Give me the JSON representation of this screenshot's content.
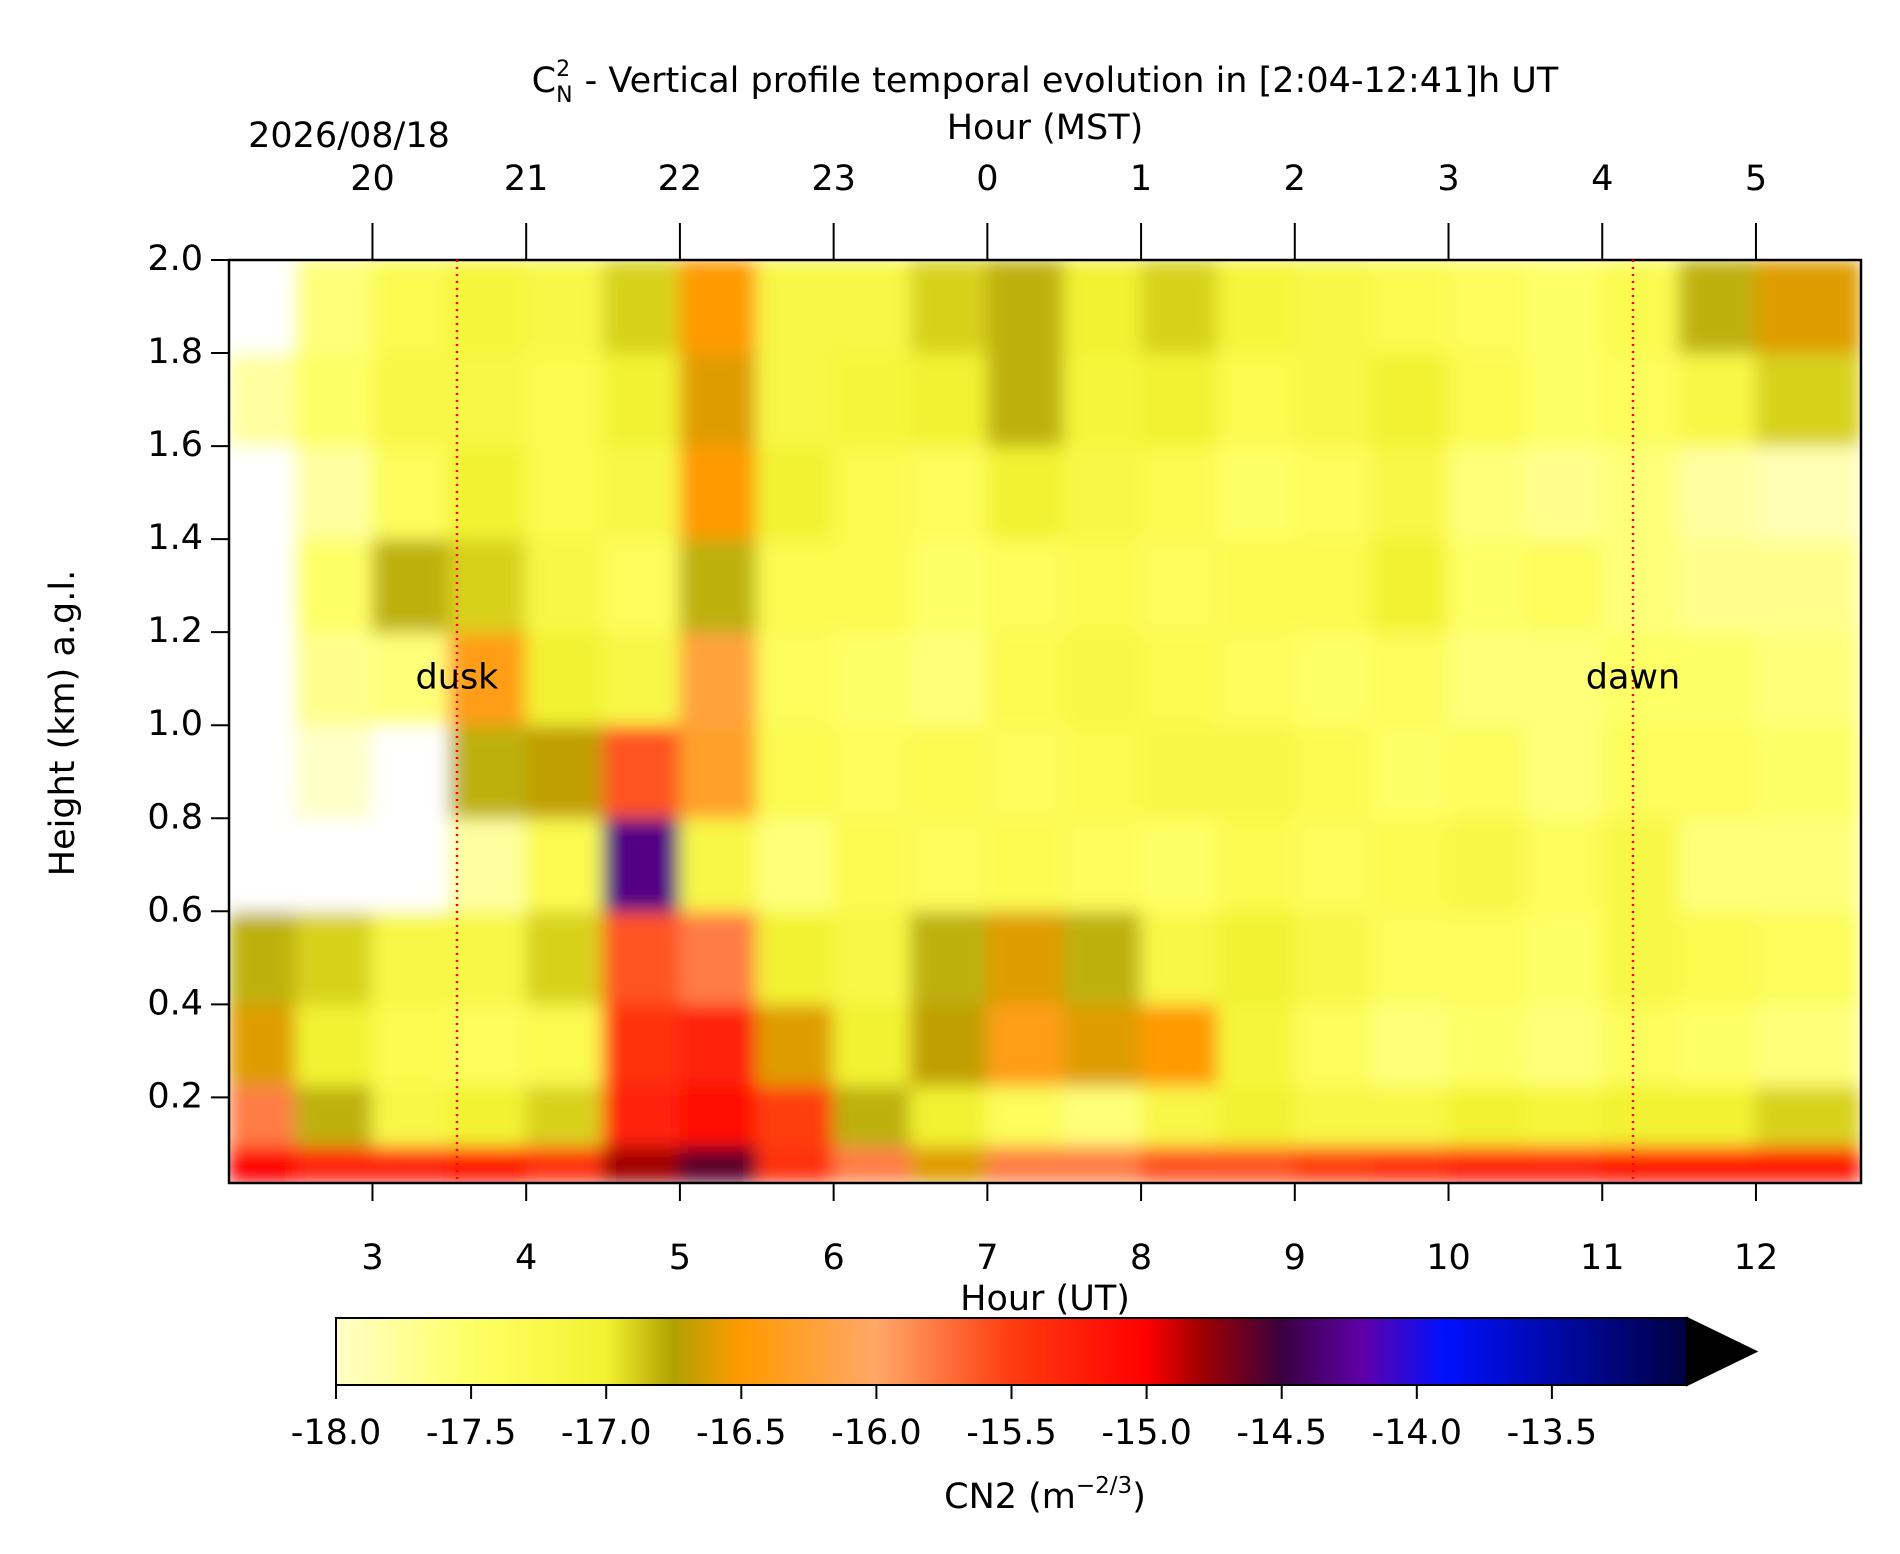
{
  "chart_data": {
    "type": "heatmap",
    "title": {
      "symbol": "C",
      "sub": "N",
      "sup": "2",
      "text": "- Vertical profile temporal evolution in [2:04-12:41]h UT"
    },
    "date_label": "2026/08/18",
    "xlabel": "Hour (UT)",
    "x2label": "Hour (MST)",
    "ylabel": "Height (km) a.g.l.",
    "xlim": [
      2.0667,
      12.6833
    ],
    "xticks": [
      3,
      4,
      5,
      6,
      7,
      8,
      9,
      10,
      11,
      12
    ],
    "x2ticks": [
      {
        "value": 3,
        "label": "20"
      },
      {
        "value": 4,
        "label": "21"
      },
      {
        "value": 5,
        "label": "22"
      },
      {
        "value": 6,
        "label": "23"
      },
      {
        "value": 7,
        "label": "0"
      },
      {
        "value": 8,
        "label": "1"
      },
      {
        "value": 9,
        "label": "2"
      },
      {
        "value": 10,
        "label": "3"
      },
      {
        "value": 11,
        "label": "4"
      },
      {
        "value": 12,
        "label": "5"
      }
    ],
    "ylim": [
      0.016,
      2.0
    ],
    "yticks": [
      0.2,
      0.4,
      0.6,
      0.8,
      {
        "value": 1,
        "label": "1.0"
      },
      1.2,
      1.4,
      1.6,
      1.8,
      {
        "value": 2,
        "label": "2.0"
      }
    ],
    "x": [
      2.25,
      2.75,
      3.25,
      3.75,
      4.25,
      4.75,
      5.25,
      5.75,
      6.25,
      6.75,
      7.25,
      7.75,
      8.25,
      8.75,
      9.25,
      9.75,
      10.25,
      10.75,
      11.25,
      11.75,
      12.25
    ],
    "y": [
      0.04,
      0.15,
      0.3,
      0.5,
      0.7,
      0.9,
      1.1,
      1.3,
      1.5,
      1.7,
      1.9
    ],
    "z": [
      [
        -15.0,
        -15.8,
        -16.6,
        -16.8,
        -18.2,
        -18.2,
        -18.2,
        -18.2,
        -18.2,
        -17.8,
        -18.2
      ],
      [
        -15.3,
        -16.8,
        -17.0,
        -16.9,
        -18.2,
        -18.0,
        -17.7,
        -17.5,
        -17.8,
        -17.5,
        -17.6
      ],
      [
        -15.3,
        -17.2,
        -17.3,
        -17.2,
        -18.2,
        -18.1,
        -17.6,
        -16.8,
        -17.4,
        -17.2,
        -17.3
      ],
      [
        -15.2,
        -17.0,
        -17.4,
        -17.2,
        -17.8,
        -16.8,
        -16.4,
        -16.9,
        -17.0,
        -17.2,
        -17.1
      ],
      [
        -15.4,
        -16.9,
        -17.3,
        -16.9,
        -17.3,
        -16.7,
        -17.0,
        -17.2,
        -17.3,
        -17.3,
        -17.2
      ],
      [
        -14.8,
        -15.3,
        -15.4,
        -15.6,
        -14.3,
        -15.6,
        -17.2,
        -17.4,
        -17.2,
        -17.0,
        -16.9
      ],
      [
        -14.6,
        -15.1,
        -15.3,
        -15.8,
        -17.2,
        -16.3,
        -16.2,
        -16.8,
        -16.5,
        -16.6,
        -16.5
      ],
      [
        -15.4,
        -15.5,
        -16.6,
        -17.0,
        -17.6,
        -17.3,
        -17.4,
        -17.3,
        -17.0,
        -17.2,
        -17.2
      ],
      [
        -15.8,
        -16.8,
        -17.0,
        -17.2,
        -17.3,
        -17.4,
        -17.5,
        -17.3,
        -17.3,
        -17.1,
        -17.2
      ],
      [
        -16.6,
        -17.0,
        -16.7,
        -16.8,
        -17.4,
        -17.3,
        -17.6,
        -17.5,
        -17.4,
        -17.0,
        -16.9
      ],
      [
        -15.8,
        -17.4,
        -16.4,
        -16.6,
        -17.3,
        -17.4,
        -17.3,
        -17.4,
        -17.0,
        -16.8,
        -16.8
      ],
      [
        -15.8,
        -17.6,
        -16.6,
        -16.8,
        -17.4,
        -17.3,
        -17.2,
        -17.3,
        -17.2,
        -17.1,
        -17.0
      ],
      [
        -15.6,
        -17.2,
        -16.5,
        -17.2,
        -17.5,
        -17.2,
        -17.3,
        -17.4,
        -17.3,
        -17.0,
        -16.9
      ],
      [
        -15.6,
        -17.0,
        -17.1,
        -17.0,
        -17.3,
        -17.2,
        -17.4,
        -17.3,
        -17.5,
        -17.3,
        -17.1
      ],
      [
        -15.5,
        -17.2,
        -17.4,
        -17.2,
        -17.4,
        -17.3,
        -17.5,
        -17.3,
        -17.4,
        -17.2,
        -17.2
      ],
      [
        -15.4,
        -17.2,
        -17.6,
        -17.4,
        -17.3,
        -17.5,
        -17.4,
        -17.0,
        -17.2,
        -17.0,
        -17.3
      ],
      [
        -15.3,
        -17.0,
        -17.5,
        -17.4,
        -17.2,
        -17.4,
        -17.6,
        -17.5,
        -17.6,
        -17.3,
        -17.4
      ],
      [
        -15.3,
        -17.1,
        -17.6,
        -17.5,
        -17.4,
        -17.6,
        -17.6,
        -17.4,
        -17.7,
        -17.5,
        -17.5
      ],
      [
        -15.2,
        -17.0,
        -17.4,
        -17.2,
        -17.2,
        -17.4,
        -17.5,
        -17.6,
        -17.6,
        -17.4,
        -17.3
      ],
      [
        -15.2,
        -17.0,
        -17.5,
        -17.3,
        -17.6,
        -17.4,
        -17.5,
        -17.7,
        -17.8,
        -17.2,
        -16.8
      ],
      [
        -15.2,
        -16.9,
        -17.6,
        -17.4,
        -17.6,
        -17.5,
        -17.6,
        -17.7,
        -17.9,
        -16.9,
        -16.6
      ]
    ],
    "colorscale": [
      [
        -18,
        "#ffffc8"
      ],
      [
        -17.5,
        "#ffff66"
      ],
      [
        -17,
        "#f2f230"
      ],
      [
        -16.75,
        "#b0a000"
      ],
      [
        -16.5,
        "#ff9a00"
      ],
      [
        -16,
        "#ffa868"
      ],
      [
        -15.5,
        "#ff3c10"
      ],
      [
        -15,
        "#ff0000"
      ],
      [
        -14.8,
        "#a00000"
      ],
      [
        -14.5,
        "#3a0040"
      ],
      [
        -14.2,
        "#6000a8"
      ],
      [
        -13.9,
        "#0010ff"
      ],
      [
        -13,
        "#000040"
      ]
    ],
    "under_color": "#ffffff",
    "over_color": "#000000",
    "clim": [
      -18,
      -13
    ],
    "cbar_ticks": [
      {
        "value": -18,
        "label": "-18.0"
      },
      -17.5,
      {
        "value": -17,
        "label": "-17.0"
      },
      -16.5,
      {
        "value": -16,
        "label": "-16.0"
      },
      -15.5,
      {
        "value": -15,
        "label": "-15.0"
      },
      -14.5,
      {
        "value": -14,
        "label": "-14.0"
      },
      -13.5
    ],
    "cbar_label": {
      "text": "CN2 (m",
      "sup": "−2/3",
      "close": ")"
    },
    "annotations": [
      {
        "text": "dusk",
        "x": 3.55,
        "y": 1.1,
        "color": "#ff0000"
      },
      {
        "text": "dawn",
        "x": 11.2,
        "y": 1.1,
        "color": "#ff0000"
      }
    ]
  }
}
